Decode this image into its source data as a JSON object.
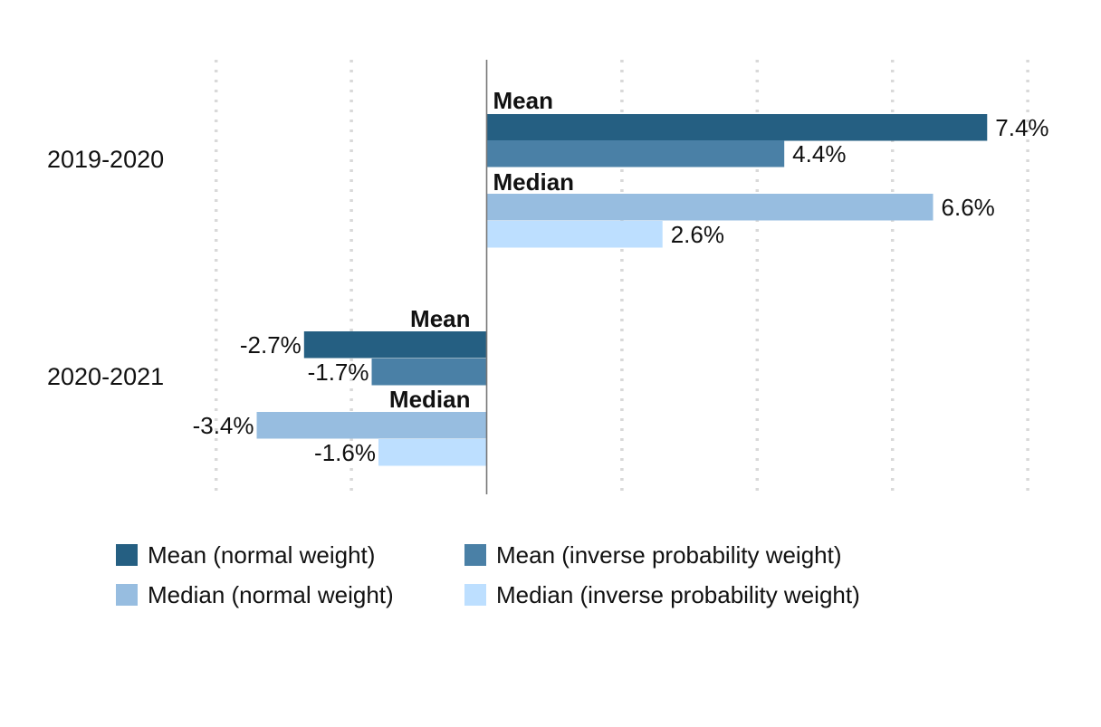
{
  "chart_data": {
    "type": "bar",
    "orientation": "horizontal",
    "categories": [
      "2019-2020",
      "2020-2021"
    ],
    "groups": [
      "Mean",
      "Median"
    ],
    "series": [
      {
        "name": "Mean (normal weight)",
        "group": "Mean",
        "color": "#255f82",
        "values": [
          7.4,
          -2.7
        ],
        "labels": [
          "7.4%",
          "-2.7%"
        ]
      },
      {
        "name": "Mean (inverse probability weight)",
        "group": "Mean",
        "color": "#4a80a6",
        "values": [
          4.4,
          -1.7
        ],
        "labels": [
          "4.4%",
          "-1.7%"
        ]
      },
      {
        "name": "Median (normal weight)",
        "group": "Median",
        "color": "#97bde0",
        "values": [
          6.6,
          -3.4
        ],
        "labels": [
          "6.6%",
          "-3.4%"
        ]
      },
      {
        "name": "Median (inverse probability weight)",
        "group": "Median",
        "color": "#bddfff",
        "values": [
          2.6,
          -1.6
        ],
        "labels": [
          "2.6%",
          "-1.6%"
        ]
      }
    ],
    "xlim": [
      -4,
      8
    ],
    "gridlines": [
      -4,
      -2,
      2,
      4,
      6,
      8
    ],
    "grid": "vertical dotted",
    "zero_line": true,
    "legend_position": "bottom",
    "title": "",
    "xlabel": "",
    "ylabel": ""
  }
}
